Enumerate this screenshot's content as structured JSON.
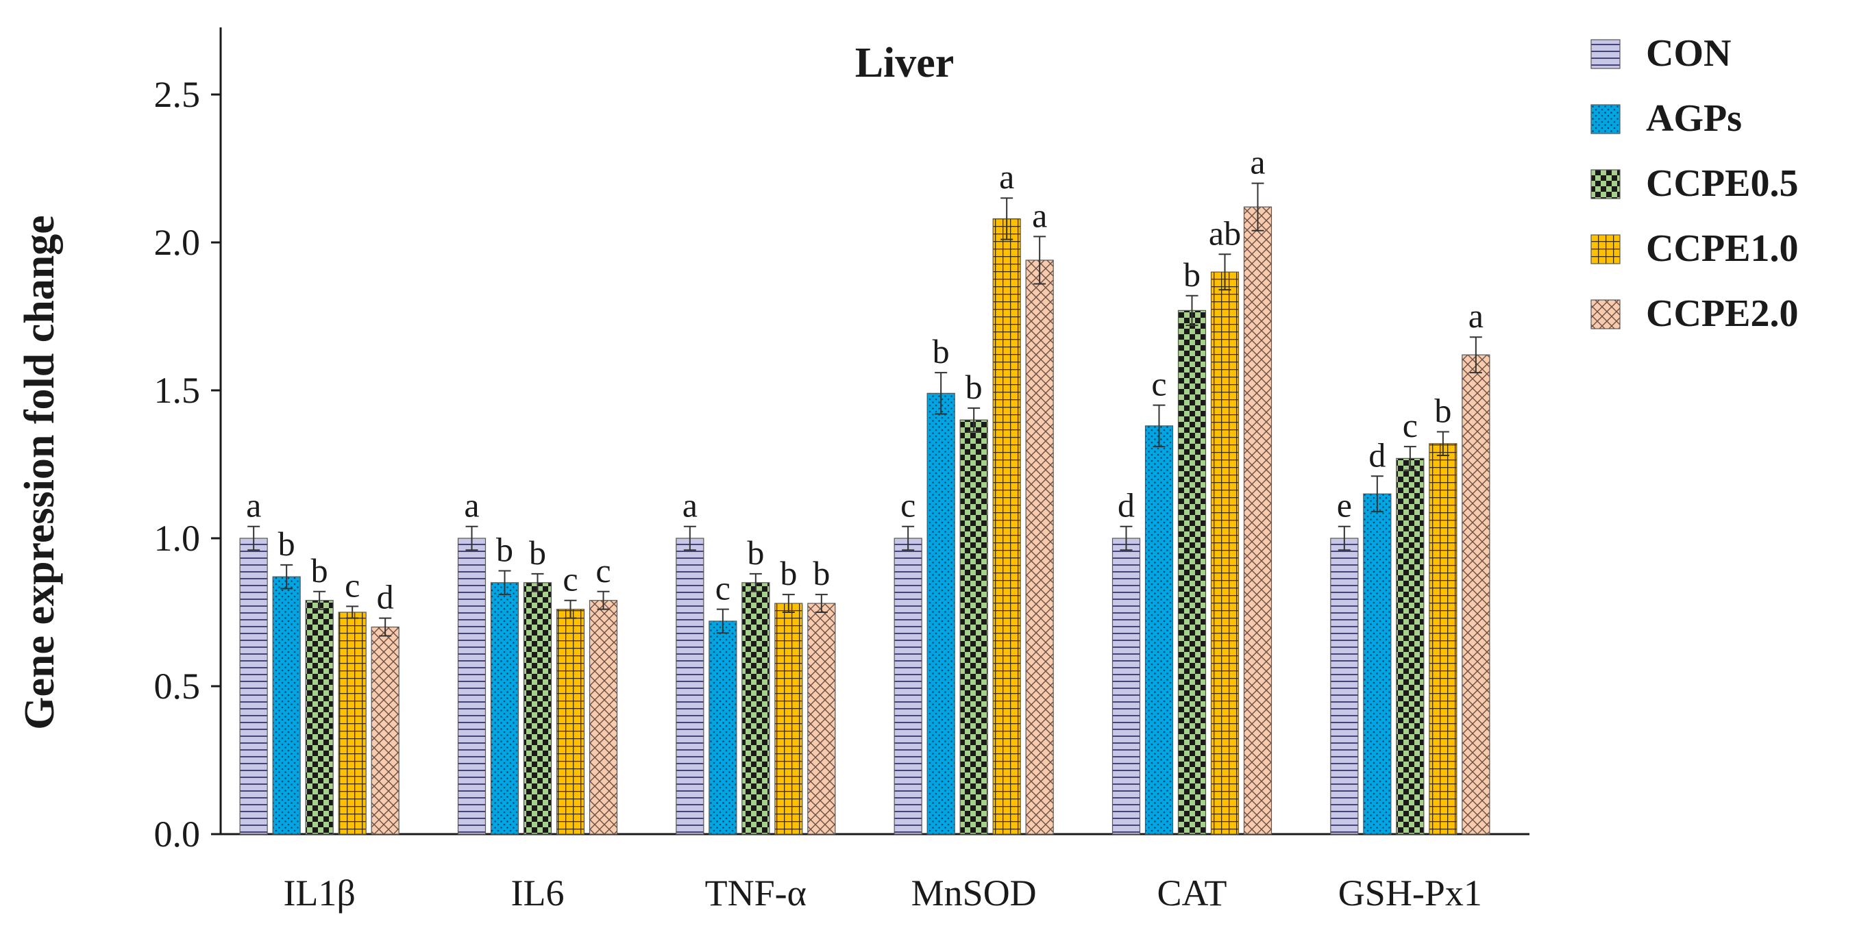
{
  "chart_data": {
    "type": "bar",
    "title": "Liver",
    "ylabel": "Gene expression fold change",
    "xlabel": "",
    "ylim": [
      0,
      2.7
    ],
    "yticks": [
      "0.0",
      "0.5",
      "1.0",
      "1.5",
      "2.0",
      "2.5"
    ],
    "ytick_values": [
      0,
      0.5,
      1.0,
      1.5,
      2.0,
      2.5
    ],
    "categories": [
      "IL1β",
      "IL6",
      "TNF-α",
      "MnSOD",
      "CAT",
      "GSH-Px1"
    ],
    "series": [
      {
        "name": "CON",
        "color": "#c9c7e6",
        "pattern": "hlines",
        "values": [
          1.0,
          1.0,
          1.0,
          1.0,
          1.0,
          1.0
        ],
        "errors": [
          0.04,
          0.04,
          0.04,
          0.04,
          0.04,
          0.04
        ],
        "letters": [
          "a",
          "a",
          "a",
          "c",
          "d",
          "e"
        ]
      },
      {
        "name": "AGPs",
        "color": "#00a6e3",
        "pattern": "dots",
        "values": [
          0.87,
          0.85,
          0.72,
          1.49,
          1.38,
          1.15
        ],
        "errors": [
          0.04,
          0.04,
          0.04,
          0.07,
          0.07,
          0.06
        ],
        "letters": [
          "b",
          "b",
          "c",
          "b",
          "c",
          "d"
        ]
      },
      {
        "name": "CCPE0.5",
        "color": "#a8d08d",
        "pattern": "checker",
        "values": [
          0.79,
          0.85,
          0.85,
          1.4,
          1.77,
          1.27
        ],
        "errors": [
          0.03,
          0.03,
          0.03,
          0.04,
          0.05,
          0.04
        ],
        "letters": [
          "b",
          "b",
          "b",
          "b",
          "b",
          "c"
        ]
      },
      {
        "name": "CCPE1.0",
        "color": "#ffc000",
        "pattern": "grid",
        "values": [
          0.75,
          0.76,
          0.78,
          2.08,
          1.9,
          1.32
        ],
        "errors": [
          0.02,
          0.03,
          0.03,
          0.07,
          0.06,
          0.04
        ],
        "letters": [
          "c",
          "c",
          "b",
          "a",
          "ab",
          "b"
        ]
      },
      {
        "name": "CCPE2.0",
        "color": "#f8cbad",
        "pattern": "crosshatch",
        "values": [
          0.7,
          0.79,
          0.78,
          1.94,
          2.12,
          1.62
        ],
        "errors": [
          0.03,
          0.03,
          0.03,
          0.08,
          0.08,
          0.06
        ],
        "letters": [
          "d",
          "c",
          "b",
          "a",
          "a",
          "a"
        ]
      }
    ],
    "legend_position": "top-right",
    "grid": false
  }
}
